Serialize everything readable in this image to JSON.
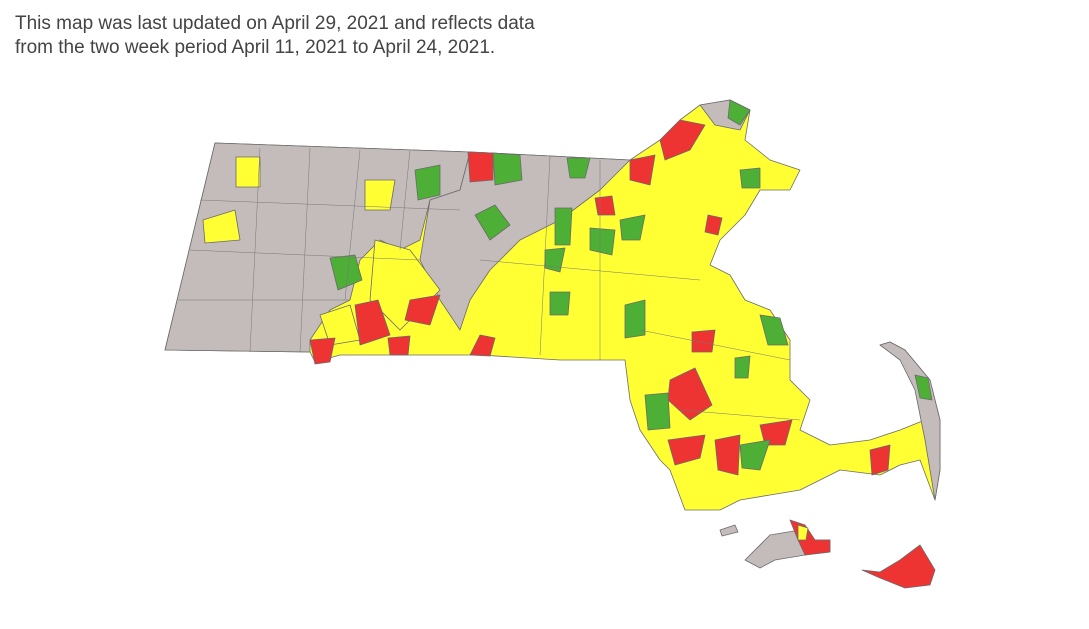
{
  "caption": {
    "lines": [
      "This map was last updated on April 29, 2021 and reflects data",
      "from the two week period April 11, 2021 to April 24, 2021."
    ]
  }
}
